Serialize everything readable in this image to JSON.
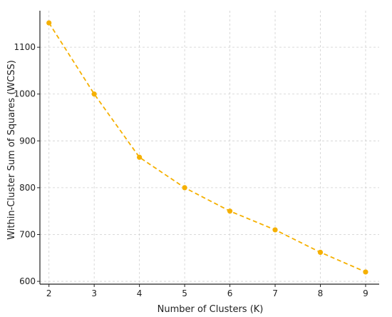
{
  "chart_data": {
    "type": "line",
    "title": "",
    "xlabel": "Number of Clusters (K)",
    "ylabel": "Within-Cluster Sum of Squares (WCSS)",
    "x": [
      2,
      3,
      4,
      5,
      6,
      7,
      8,
      9
    ],
    "series": [
      {
        "values": [
          1152,
          1000,
          865,
          800,
          750,
          710,
          662,
          620
        ],
        "color": "#f5b000",
        "line_style": "dashed",
        "marker": "circle"
      }
    ],
    "xticks": [
      "2",
      "3",
      "4",
      "5",
      "6",
      "7",
      "8",
      "9"
    ],
    "yticks": [
      "600",
      "700",
      "800",
      "900",
      "1000",
      "1100"
    ],
    "xlim": [
      1.8,
      9.3
    ],
    "ylim": [
      594,
      1178
    ],
    "grid": true,
    "legend": "none"
  }
}
